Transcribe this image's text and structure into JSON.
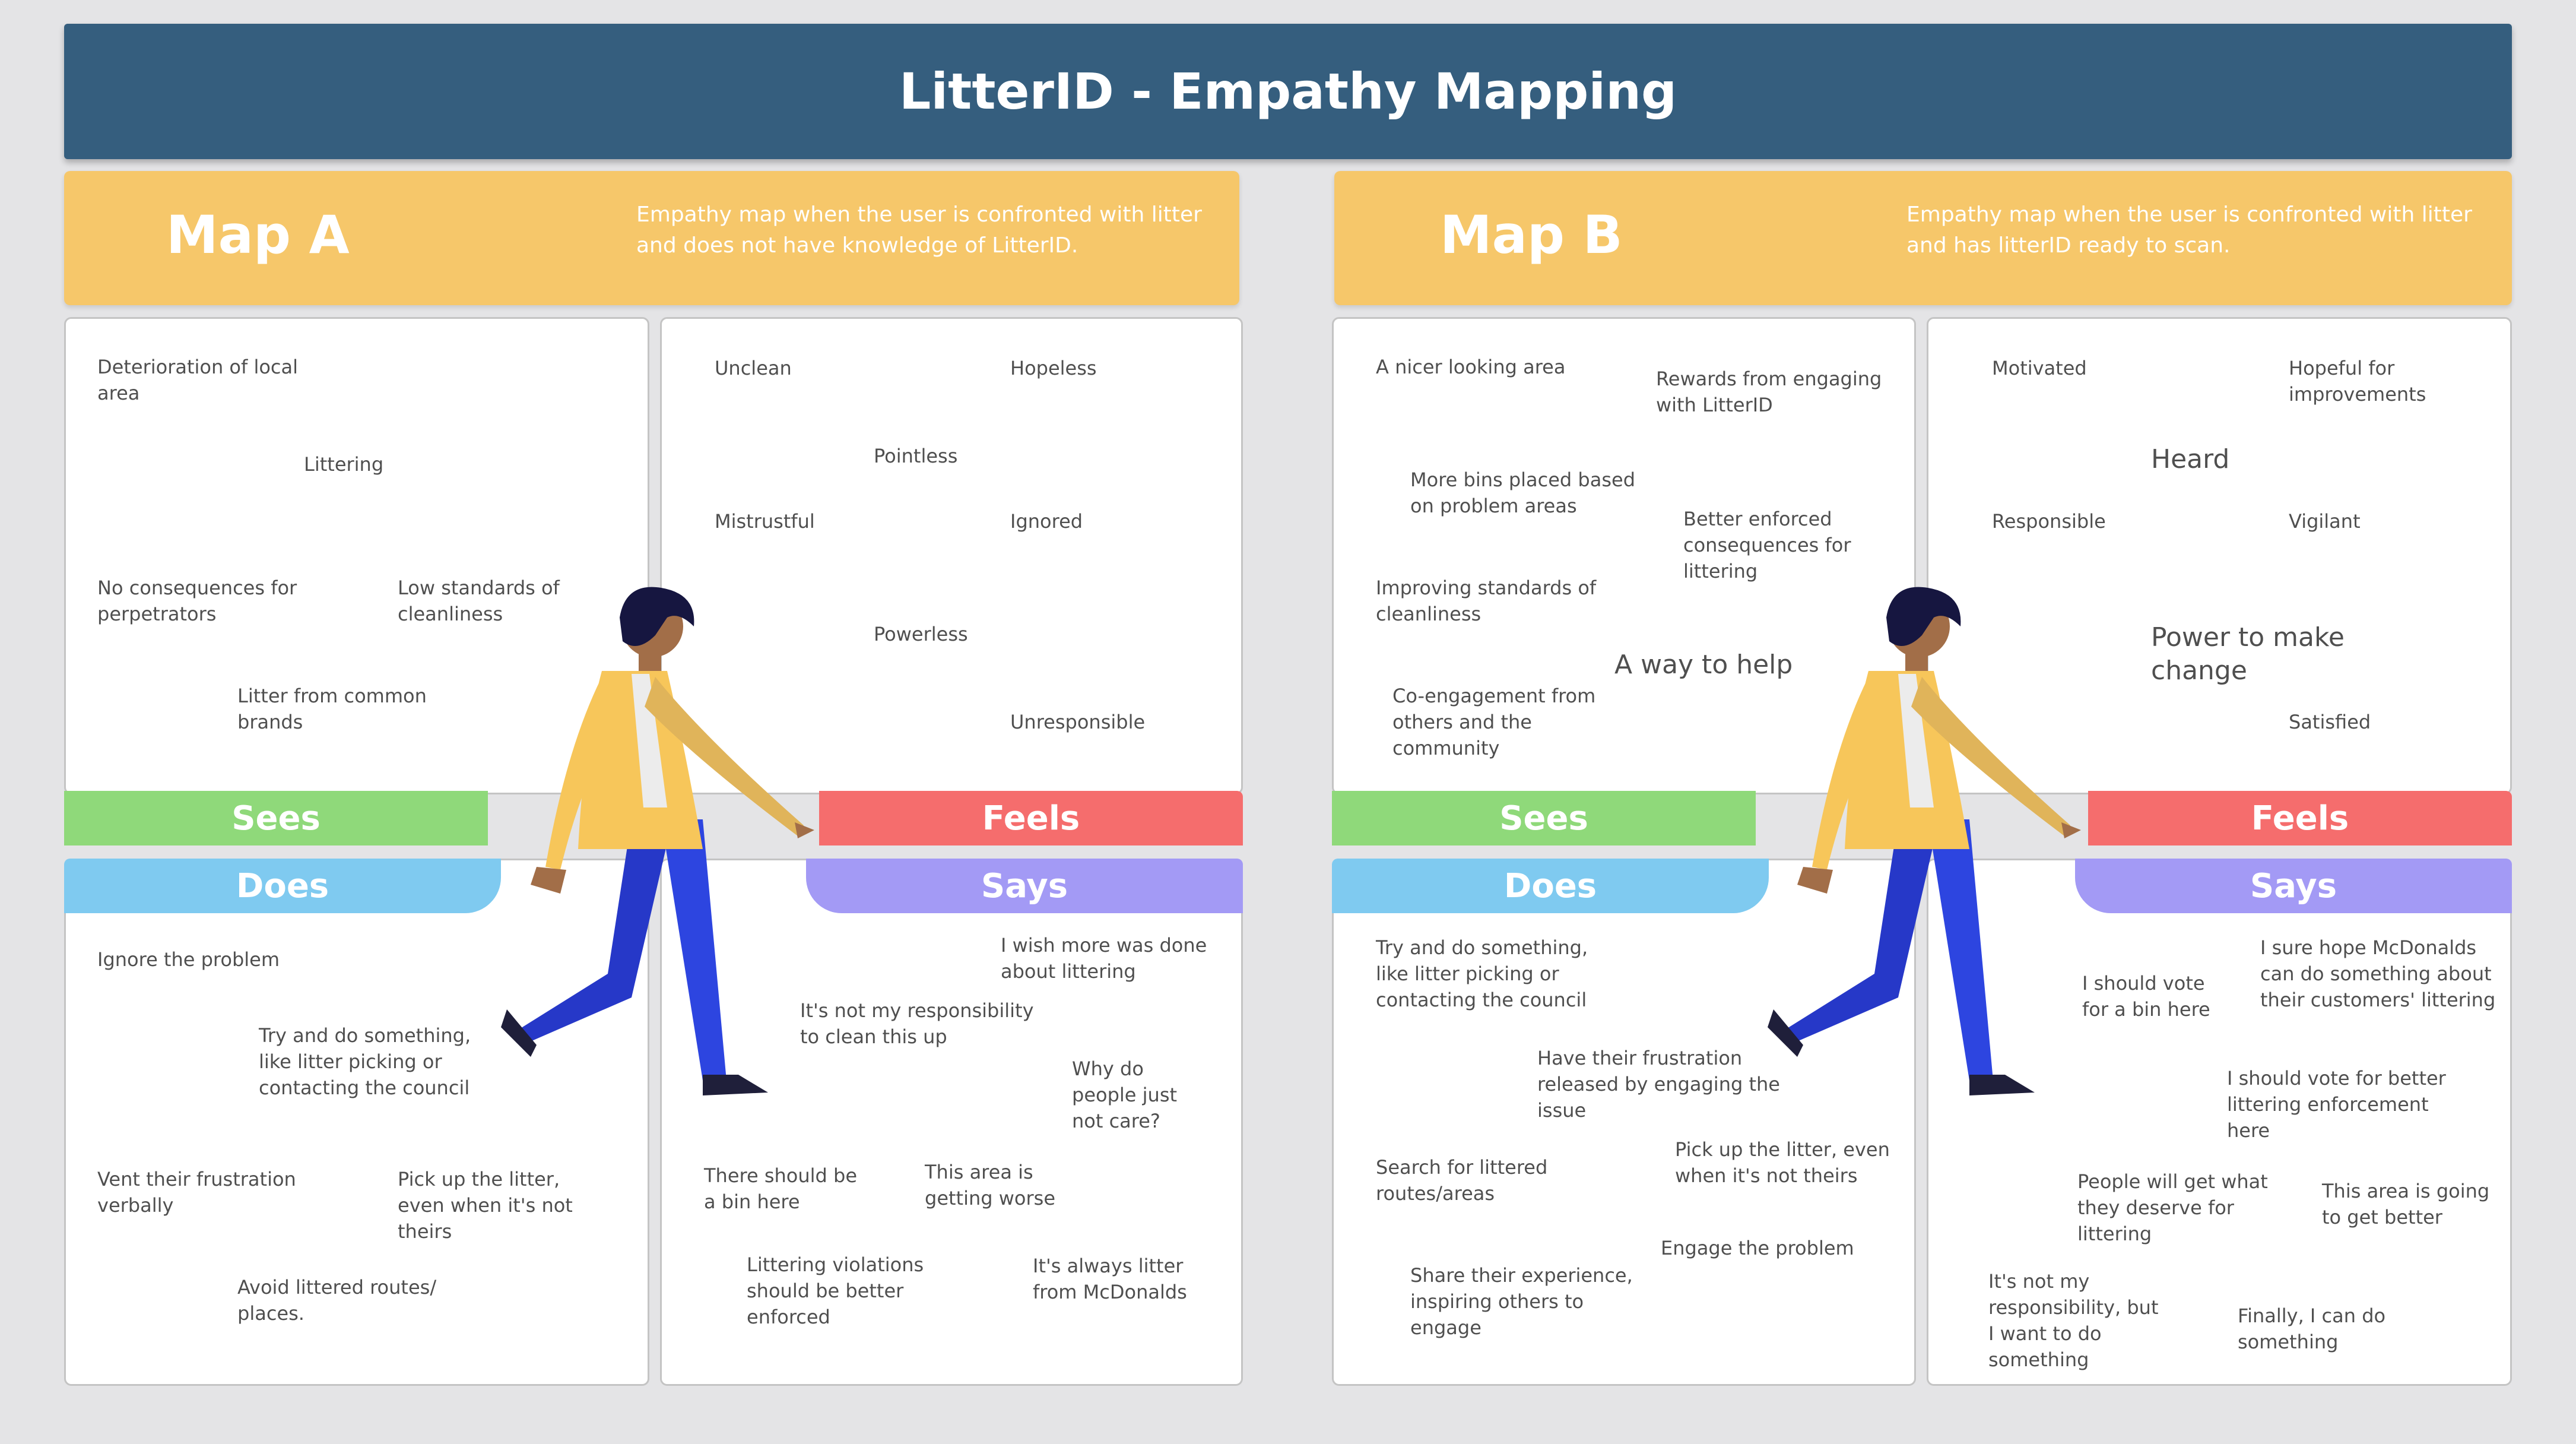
{
  "title": "LitterID - Empathy Mapping",
  "maps": [
    {
      "title": "Map A",
      "description": "Empathy map when the user is confronted with litter and does not have knowledge of LitterID.",
      "sees": {
        "label": "Sees",
        "notes": [
          "Deterioration of local area",
          "Littering",
          "No consequences for perpetrators",
          "Low standards of cleanliness",
          "Litter from common brands"
        ]
      },
      "feels": {
        "label": "Feels",
        "notes": [
          "Unclean",
          "Hopeless",
          "Pointless",
          "Mistrustful",
          "Ignored",
          "Powerless",
          "Unresponsible"
        ]
      },
      "does": {
        "label": "Does",
        "notes": [
          "Ignore the problem",
          "Try and do something, like litter picking or contacting the council",
          "Vent their frustration verbally",
          "Pick up the litter, even when it's not theirs",
          "Avoid littered routes/ places."
        ]
      },
      "says": {
        "label": "Says",
        "notes": [
          "I wish more was done about littering",
          "It's not my responsibility to clean this up",
          "Why do people just not care?",
          "There should be a bin here",
          "This area is getting worse",
          "Littering violations should be better enforced",
          "It's always litter from McDonalds"
        ]
      }
    },
    {
      "title": "Map B",
      "description": "Empathy map when the user is confronted with litter and has litterID ready to scan.",
      "sees": {
        "label": "Sees",
        "notes": [
          "A nicer looking area",
          "Rewards from engaging with LitterID",
          "More bins placed based on problem areas",
          "Better enforced consequences for littering",
          "Improving standards of cleanliness",
          "A way to help",
          "Co-engagement from others and the community"
        ]
      },
      "feels": {
        "label": "Feels",
        "notes": [
          "Motivated",
          "Hopeful for improvements",
          "Heard",
          "Responsible",
          "Vigilant",
          "Power to make change",
          "Satisfied"
        ]
      },
      "does": {
        "label": "Does",
        "notes": [
          "Try and do something, like litter picking or contacting the council",
          "Have their frustration released by engaging the issue",
          "Search for littered routes/areas",
          "Pick up the litter, even when it's not theirs",
          "Engage the problem",
          "Share their experience, inspiring others to engage"
        ]
      },
      "says": {
        "label": "Says",
        "notes": [
          "I should vote for a bin here",
          "I sure hope McDonalds can do something about their customers' littering",
          "I should vote for better littering enforcement here",
          "People will get what they deserve for littering",
          "This area is going to get better",
          "It's not my responsibility, but I want to do something",
          "Finally, I can do something"
        ]
      }
    }
  ],
  "colors": {
    "header": "#355e7e",
    "map_header": "#f6c76a",
    "sees": "#8fd97a",
    "feels": "#f56d6d",
    "does": "#7fcaf0",
    "says": "#a39af5"
  },
  "icons": [
    "person-walking-illustration"
  ]
}
